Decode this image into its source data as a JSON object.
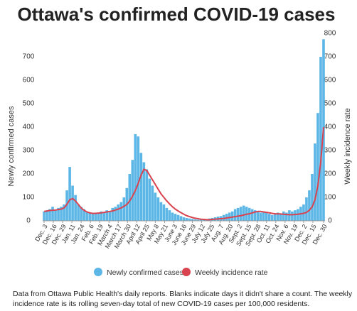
{
  "chart_data": {
    "type": "bar-line",
    "title": "Ottawa's confirmed COVID-19 cases",
    "y_label": "Newly confirmed cases",
    "y2_label": "Weekly incidence rate",
    "note": "Data from Ottawa Public Health's daily reports. Blanks indicate days it didn't share a count. The weekly incidence rate is its rolling seven-day total of new COVID-19 cases per 100,000 residents.",
    "x": [
      0,
      4,
      8,
      12,
      16,
      20,
      24,
      28,
      32,
      36,
      40,
      44,
      48,
      52,
      56,
      60,
      64,
      68,
      72,
      76,
      80,
      84,
      88,
      92,
      96,
      100,
      104,
      108,
      112,
      116,
      120,
      124,
      128,
      132,
      136,
      140,
      144,
      148,
      152,
      156,
      160,
      164,
      168,
      172,
      176,
      180,
      184,
      188,
      192,
      196,
      200,
      204,
      208,
      212,
      216,
      220,
      224,
      228,
      232,
      236,
      240,
      244,
      248,
      252,
      256,
      260,
      264,
      268,
      272,
      276,
      280,
      284,
      288,
      292,
      296,
      300,
      304,
      308,
      312,
      316,
      320,
      324,
      328,
      332,
      336,
      340,
      344,
      348,
      352,
      356,
      360,
      364,
      368,
      372,
      376,
      380,
      384,
      388,
      392
    ],
    "xlim": [
      0,
      392
    ],
    "xticks": [
      {
        "value": 0,
        "label": "Dec. 3"
      },
      {
        "value": 13,
        "label": "Dec. 16"
      },
      {
        "value": 26,
        "label": "Dec. 29"
      },
      {
        "value": 39,
        "label": "Jan. 11"
      },
      {
        "value": 52,
        "label": "Jan. 24"
      },
      {
        "value": 65,
        "label": "Feb. 6"
      },
      {
        "value": 78,
        "label": "Feb. 19"
      },
      {
        "value": 91,
        "label": "March 4"
      },
      {
        "value": 104,
        "label": "March 17"
      },
      {
        "value": 117,
        "label": "March 30"
      },
      {
        "value": 130,
        "label": "April 12"
      },
      {
        "value": 143,
        "label": "April 25"
      },
      {
        "value": 156,
        "label": "May 8"
      },
      {
        "value": 169,
        "label": "May 21"
      },
      {
        "value": 182,
        "label": "June 3"
      },
      {
        "value": 195,
        "label": "June 16"
      },
      {
        "value": 208,
        "label": "June 29"
      },
      {
        "value": 221,
        "label": "July 12"
      },
      {
        "value": 234,
        "label": "July 25"
      },
      {
        "value": 247,
        "label": "Aug. 7"
      },
      {
        "value": 260,
        "label": "Aug. 20"
      },
      {
        "value": 273,
        "label": "Sept. 2"
      },
      {
        "value": 286,
        "label": "Sept. 15"
      },
      {
        "value": 299,
        "label": "Sept. 28"
      },
      {
        "value": 312,
        "label": "Oct. 11"
      },
      {
        "value": 325,
        "label": "Oct. 24"
      },
      {
        "value": 338,
        "label": "Nov. 6"
      },
      {
        "value": 351,
        "label": "Nov. 19"
      },
      {
        "value": 364,
        "label": "Dec. 2"
      },
      {
        "value": 377,
        "label": "Dec. 15"
      },
      {
        "value": 392,
        "label": "Dec. 30"
      }
    ],
    "ylim": [
      0,
      800
    ],
    "yticks": [
      0,
      100,
      200,
      300,
      400,
      500,
      600,
      700
    ],
    "y2lim": [
      0,
      800
    ],
    "y2ticks": [
      0,
      100,
      200,
      300,
      400,
      500,
      600,
      700,
      800
    ],
    "grid": false,
    "series": [
      {
        "name": "Newly confirmed cases",
        "color": "#5cb6e6",
        "mark": "bar",
        "values": [
          40,
          45,
          50,
          60,
          45,
          55,
          60,
          70,
          130,
          230,
          150,
          110,
          70,
          60,
          50,
          40,
          35,
          30,
          35,
          30,
          40,
          35,
          45,
          40,
          55,
          60,
          70,
          80,
          100,
          140,
          200,
          260,
          370,
          360,
          290,
          250,
          220,
          180,
          150,
          120,
          100,
          80,
          70,
          55,
          45,
          35,
          30,
          25,
          20,
          15,
          12,
          10,
          8,
          6,
          5,
          6,
          8,
          7,
          10,
          12,
          15,
          18,
          20,
          25,
          30,
          35,
          40,
          50,
          55,
          60,
          65,
          60,
          55,
          50,
          45,
          40,
          35,
          40,
          35,
          30,
          25,
          30,
          35,
          30,
          40,
          35,
          45,
          40,
          45,
          50,
          60,
          70,
          100,
          130,
          200,
          330,
          460,
          700,
          775
        ]
      },
      {
        "name": "Weekly incidence rate",
        "color": "#d9434f",
        "mark": "line",
        "axis": "y2",
        "values": [
          40,
          42,
          44,
          45,
          46,
          48,
          50,
          55,
          70,
          90,
          95,
          85,
          70,
          55,
          45,
          38,
          34,
          32,
          32,
          33,
          34,
          36,
          38,
          40,
          42,
          46,
          50,
          55,
          62,
          70,
          85,
          105,
          130,
          160,
          195,
          220,
          215,
          195,
          175,
          155,
          135,
          115,
          100,
          85,
          72,
          60,
          50,
          42,
          35,
          28,
          22,
          18,
          14,
          11,
          9,
          7,
          6,
          5,
          5,
          6,
          7,
          8,
          9,
          10,
          12,
          14,
          16,
          18,
          20,
          22,
          25,
          28,
          30,
          34,
          38,
          40,
          40,
          38,
          36,
          34,
          32,
          30,
          30,
          29,
          28,
          27,
          26,
          26,
          27,
          28,
          30,
          32,
          36,
          45,
          60,
          90,
          150,
          250,
          400
        ]
      }
    ]
  }
}
